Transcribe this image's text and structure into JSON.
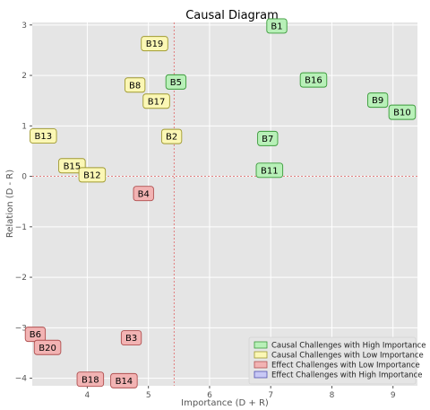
{
  "chart_data": {
    "type": "scatter",
    "title": "Causal Diagram",
    "xlabel": "Importance (D + R)",
    "ylabel": "Relation (D - R)",
    "xlim": [
      3.1,
      9.4
    ],
    "ylim": [
      -4.15,
      3.05
    ],
    "x_ticks": [
      4,
      5,
      6,
      7,
      8,
      9
    ],
    "y_ticks": [
      -4,
      -3,
      -2,
      -1,
      0,
      1,
      2,
      3
    ],
    "x_tick_labels": [
      "4",
      "5",
      "6",
      "7",
      "8",
      "9"
    ],
    "y_tick_labels": [
      "−4",
      "−3",
      "−2",
      "−1",
      "0",
      "1",
      "2",
      "3"
    ],
    "grid": true,
    "reference_lines": {
      "x": 5.42,
      "y": 0
    },
    "legend_position": "lower-right",
    "colors": {
      "high_causal_fill": "#b8f0b8",
      "high_causal_edge": "#3a9a3a",
      "low_causal_fill": "#fbf7b5",
      "low_causal_edge": "#a09a30",
      "low_effect_fill": "#f2b3b3",
      "low_effect_edge": "#b05050",
      "high_effect_fill": "#c8c8f5",
      "high_effect_edge": "#5050b0",
      "reference_line": "#e07070",
      "plot_background": "#e5e5e5",
      "grid": "#ffffff"
    },
    "series": [
      {
        "name": "Causal Challenges with High Importance",
        "category": "high_causal",
        "points": [
          {
            "label": "B1",
            "x": 7.1,
            "y": 2.98
          },
          {
            "label": "B16",
            "x": 7.7,
            "y": 1.91
          },
          {
            "label": "B9",
            "x": 8.75,
            "y": 1.51
          },
          {
            "label": "B10",
            "x": 9.15,
            "y": 1.27
          },
          {
            "label": "B5",
            "x": 5.45,
            "y": 1.87
          },
          {
            "label": "B7",
            "x": 6.95,
            "y": 0.75
          },
          {
            "label": "B11",
            "x": 6.98,
            "y": 0.12
          }
        ]
      },
      {
        "name": "Causal Challenges with Low Importance",
        "category": "low_causal",
        "points": [
          {
            "label": "B19",
            "x": 5.1,
            "y": 2.63
          },
          {
            "label": "B8",
            "x": 4.78,
            "y": 1.81
          },
          {
            "label": "B17",
            "x": 5.13,
            "y": 1.49
          },
          {
            "label": "B2",
            "x": 5.38,
            "y": 0.79
          },
          {
            "label": "B13",
            "x": 3.28,
            "y": 0.8
          },
          {
            "label": "B15",
            "x": 3.75,
            "y": 0.21
          },
          {
            "label": "B12",
            "x": 4.08,
            "y": 0.03
          }
        ]
      },
      {
        "name": "Effect Challenges with Low Importance",
        "category": "low_effect",
        "points": [
          {
            "label": "B4",
            "x": 4.92,
            "y": -0.34
          },
          {
            "label": "B3",
            "x": 4.72,
            "y": -3.2
          },
          {
            "label": "B6",
            "x": 3.15,
            "y": -3.13
          },
          {
            "label": "B20",
            "x": 3.35,
            "y": -3.39
          },
          {
            "label": "B18",
            "x": 4.05,
            "y": -4.02
          },
          {
            "label": "B14",
            "x": 4.6,
            "y": -4.05
          }
        ]
      },
      {
        "name": "Effect Challenges with High Importance",
        "category": "high_effect",
        "points": []
      }
    ]
  }
}
